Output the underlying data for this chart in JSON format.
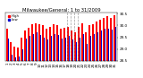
{
  "title": "Milwaukee/General: 1 to 31/2009",
  "days": [
    1,
    2,
    3,
    4,
    5,
    6,
    7,
    8,
    9,
    10,
    11,
    12,
    13,
    14,
    15,
    16,
    17,
    18,
    19,
    20,
    21,
    22,
    23,
    24,
    25,
    26,
    27,
    28,
    29,
    30,
    31
  ],
  "highs": [
    29.85,
    29.3,
    29.1,
    29.05,
    29.5,
    29.8,
    29.9,
    30.05,
    30.1,
    30.05,
    30.0,
    29.85,
    29.95,
    30.05,
    30.0,
    29.85,
    29.9,
    29.95,
    29.8,
    29.7,
    29.95,
    30.1,
    29.7,
    30.0,
    30.05,
    30.15,
    30.25,
    30.3,
    30.38,
    30.3,
    30.42
  ],
  "lows": [
    29.45,
    28.75,
    28.65,
    28.7,
    29.0,
    29.45,
    29.55,
    29.65,
    29.7,
    29.6,
    29.5,
    29.4,
    29.55,
    29.65,
    29.6,
    29.45,
    29.5,
    29.55,
    29.4,
    29.3,
    29.5,
    29.65,
    29.2,
    29.55,
    29.62,
    29.72,
    29.78,
    29.85,
    29.88,
    29.82,
    29.95
  ],
  "high_color": "#ff0000",
  "low_color": "#0000cc",
  "baseline": 28.5,
  "ylim_min": 28.5,
  "ylim_max": 30.55,
  "vline_positions": [
    16.5,
    17.5,
    18.5,
    19.5
  ],
  "yticks": [
    28.5,
    29.0,
    29.5,
    30.0,
    30.5
  ],
  "bg_color": "#ffffff",
  "tick_label_fontsize": 3.0,
  "title_fontsize": 3.8,
  "legend_fontsize": 2.8
}
